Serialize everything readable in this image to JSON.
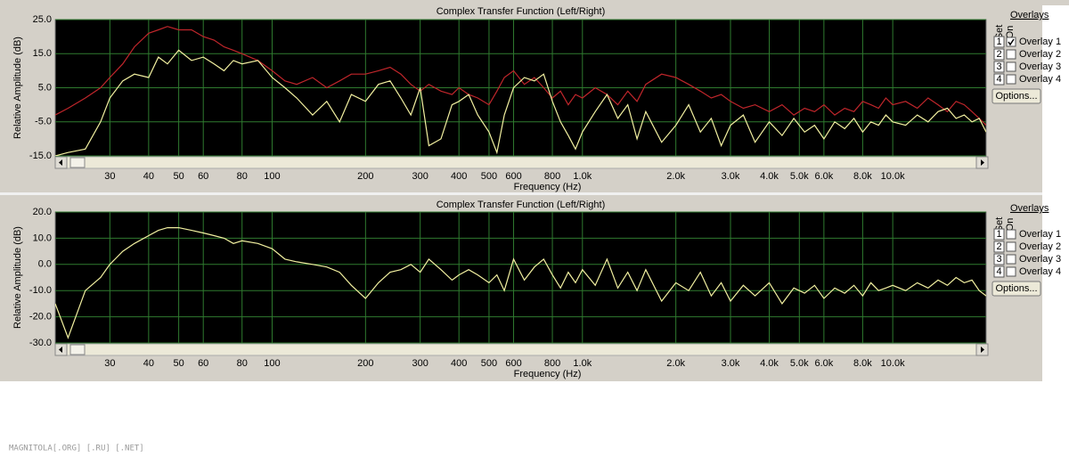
{
  "chart_data": [
    {
      "type": "line",
      "title": "Complex Transfer Function (Left/Right)",
      "xlabel": "Frequency (Hz)",
      "ylabel": "Relative Amplitude (dB)",
      "log_x": true,
      "grid": true,
      "xlim": [
        20,
        20000
      ],
      "xticks": [
        30,
        40,
        50,
        60,
        80,
        100,
        200,
        300,
        400,
        500,
        600,
        800,
        {
          "value": 1000,
          "label": "1.0k"
        },
        {
          "value": 2000,
          "label": "2.0k"
        },
        {
          "value": 3000,
          "label": "3.0k"
        },
        {
          "value": 4000,
          "label": "4.0k"
        },
        {
          "value": 5000,
          "label": "5.0k"
        },
        {
          "value": 6000,
          "label": "6.0k"
        },
        {
          "value": 8000,
          "label": "8.0k"
        },
        {
          "value": 10000,
          "label": "10.0k"
        }
      ],
      "ylim": [
        -15,
        25
      ],
      "yticks": [
        {
          "value": 25,
          "label": "25.0"
        },
        {
          "value": 15,
          "label": "15.0"
        },
        {
          "value": 5,
          "label": "5.0"
        },
        {
          "value": -5,
          "label": "-5.0"
        },
        {
          "value": -15,
          "label": "-15.0"
        }
      ],
      "x": [
        20,
        22,
        25,
        28,
        30,
        33,
        36,
        40,
        43,
        46,
        50,
        55,
        60,
        65,
        70,
        75,
        80,
        90,
        100,
        110,
        120,
        135,
        150,
        165,
        180,
        200,
        220,
        240,
        260,
        280,
        300,
        320,
        350,
        380,
        400,
        430,
        460,
        500,
        530,
        560,
        600,
        650,
        700,
        750,
        800,
        850,
        900,
        950,
        1000,
        1100,
        1200,
        1300,
        1400,
        1500,
        1600,
        1800,
        2000,
        2200,
        2400,
        2600,
        2800,
        3000,
        3300,
        3600,
        4000,
        4400,
        4800,
        5200,
        5600,
        6000,
        6500,
        7000,
        7500,
        8000,
        8500,
        9000,
        9500,
        10000,
        11000,
        12000,
        13000,
        14000,
        15000,
        16000,
        17000,
        18000,
        19000,
        20000
      ],
      "series": [
        {
          "color": "#c0262b",
          "values": [
            -3,
            -1,
            2,
            5,
            8,
            12,
            17,
            21,
            22,
            23,
            22,
            22,
            20,
            19,
            17,
            16,
            15,
            13,
            10,
            7,
            6,
            8,
            5,
            7,
            9,
            9,
            10,
            11,
            9,
            6,
            4,
            6,
            4,
            3,
            5,
            3,
            2,
            0,
            4,
            8,
            10,
            6,
            8,
            5,
            2,
            4,
            0,
            3,
            2,
            5,
            3,
            0,
            4,
            1,
            6,
            9,
            8,
            6,
            4,
            2,
            3,
            1,
            -1,
            0,
            -2,
            0,
            -3,
            -1,
            -2,
            0,
            -3,
            -1,
            -2,
            1,
            0,
            -1,
            2,
            0,
            1,
            -1,
            2,
            0,
            -2,
            1,
            0,
            -2,
            -4,
            -6
          ]
        },
        {
          "color": "#f2f0a0",
          "values": [
            -15,
            -14,
            -13,
            -5,
            2,
            7,
            9,
            8,
            14,
            12,
            16,
            13,
            14,
            12,
            10,
            13,
            12,
            13,
            8,
            5,
            2,
            -3,
            1,
            -5,
            3,
            1,
            6,
            7,
            2,
            -3,
            5,
            -12,
            -10,
            0,
            1,
            3,
            -3,
            -8,
            -14,
            -3,
            5,
            8,
            7,
            9,
            1,
            -5,
            -9,
            -13,
            -8,
            -2,
            3,
            -4,
            0,
            -10,
            -2,
            -11,
            -6,
            0,
            -8,
            -4,
            -12,
            -6,
            -3,
            -11,
            -5,
            -9,
            -4,
            -8,
            -6,
            -10,
            -5,
            -7,
            -4,
            -8,
            -5,
            -6,
            -3,
            -5,
            -6,
            -3,
            -5,
            -2,
            -1,
            -4,
            -3,
            -5,
            -4,
            -8
          ]
        }
      ],
      "overlay_panel": {
        "title": "Overlays",
        "set": "Set",
        "on": "On",
        "button": "Options...",
        "items": [
          {
            "number": "1",
            "label": "Overlay 1",
            "color": "#c0262b",
            "checked": true
          },
          {
            "number": "2",
            "label": "Overlay 2",
            "color": "#d030d0",
            "checked": false
          },
          {
            "number": "3",
            "label": "Overlay 3",
            "color": "#303090",
            "checked": false
          },
          {
            "number": "4",
            "label": "Overlay 4",
            "color": "#30c0e0",
            "checked": false
          }
        ]
      }
    },
    {
      "type": "line",
      "title": "Complex Transfer Function (Left/Right)",
      "xlabel": "Frequency (Hz)",
      "ylabel": "Relative Amplitude (dB)",
      "log_x": true,
      "grid": true,
      "xlim": [
        20,
        20000
      ],
      "xticks": [
        30,
        40,
        50,
        60,
        80,
        100,
        200,
        300,
        400,
        500,
        600,
        800,
        {
          "value": 1000,
          "label": "1.0k"
        },
        {
          "value": 2000,
          "label": "2.0k"
        },
        {
          "value": 3000,
          "label": "3.0k"
        },
        {
          "value": 4000,
          "label": "4.0k"
        },
        {
          "value": 5000,
          "label": "5.0k"
        },
        {
          "value": 6000,
          "label": "6.0k"
        },
        {
          "value": 8000,
          "label": "8.0k"
        },
        {
          "value": 10000,
          "label": "10.0k"
        }
      ],
      "ylim": [
        -30,
        20
      ],
      "yticks": [
        {
          "value": 20,
          "label": "20.0"
        },
        {
          "value": 10,
          "label": "10.0"
        },
        {
          "value": 0,
          "label": "0.0"
        },
        {
          "value": -10,
          "label": "-10.0"
        },
        {
          "value": -20,
          "label": "-20.0"
        },
        {
          "value": -30,
          "label": "-30.0"
        }
      ],
      "x": [
        20,
        22,
        25,
        28,
        30,
        33,
        36,
        40,
        43,
        46,
        50,
        55,
        60,
        65,
        70,
        75,
        80,
        90,
        100,
        110,
        120,
        135,
        150,
        165,
        180,
        200,
        220,
        240,
        260,
        280,
        300,
        320,
        350,
        380,
        400,
        430,
        460,
        500,
        530,
        560,
        600,
        650,
        700,
        750,
        800,
        850,
        900,
        950,
        1000,
        1100,
        1200,
        1300,
        1400,
        1500,
        1600,
        1800,
        2000,
        2200,
        2400,
        2600,
        2800,
        3000,
        3300,
        3600,
        4000,
        4400,
        4800,
        5200,
        5600,
        6000,
        6500,
        7000,
        7500,
        8000,
        8500,
        9000,
        9500,
        10000,
        11000,
        12000,
        13000,
        14000,
        15000,
        16000,
        17000,
        18000,
        19000,
        20000
      ],
      "series": [
        {
          "color": "#f2f0a0",
          "values": [
            -15,
            -28,
            -10,
            -5,
            0,
            5,
            8,
            11,
            13,
            14,
            14,
            13,
            12,
            11,
            10,
            8,
            9,
            8,
            6,
            2,
            1,
            0,
            -1,
            -3,
            -8,
            -13,
            -7,
            -3,
            -2,
            0,
            -3,
            2,
            -2,
            -6,
            -4,
            -2,
            -4,
            -7,
            -4,
            -10,
            2,
            -6,
            -1,
            2,
            -4,
            -9,
            -3,
            -7,
            -2,
            -8,
            2,
            -9,
            -3,
            -10,
            -2,
            -14,
            -7,
            -10,
            -3,
            -12,
            -7,
            -14,
            -8,
            -12,
            -7,
            -15,
            -9,
            -11,
            -8,
            -13,
            -9,
            -11,
            -8,
            -12,
            -7,
            -10,
            -9,
            -8,
            -10,
            -7,
            -9,
            -6,
            -8,
            -5,
            -7,
            -6,
            -10,
            -12
          ]
        }
      ],
      "overlay_panel": {
        "title": "Overlays",
        "set": "Set",
        "on": "On",
        "button": "Options...",
        "items": [
          {
            "number": "1",
            "label": "Overlay 1",
            "color": "#c0262b",
            "checked": false
          },
          {
            "number": "2",
            "label": "Overlay 2",
            "color": "#d030d0",
            "checked": false
          },
          {
            "number": "3",
            "label": "Overlay 3",
            "color": "#303090",
            "checked": false
          },
          {
            "number": "4",
            "label": "Overlay 4",
            "color": "#30c0e0",
            "checked": false
          }
        ]
      }
    }
  ],
  "watermark": "MAGNITOLA[.ORG] [.RU] [.NET]"
}
